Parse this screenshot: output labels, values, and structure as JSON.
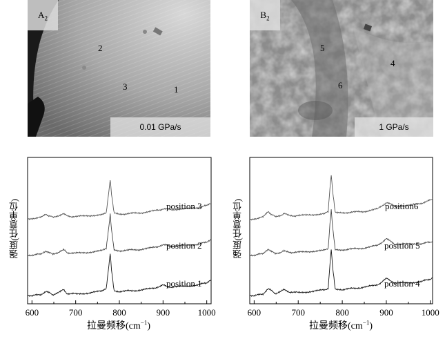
{
  "micrographs": [
    {
      "label_main": "A",
      "label_sub": "2",
      "rate": "0.01 GPa/s",
      "regions": [
        "2",
        "3",
        "1"
      ]
    },
    {
      "label_main": "B",
      "label_sub": "2",
      "rate": "1 GPa/s",
      "regions": [
        "5",
        "4",
        "6"
      ]
    }
  ],
  "chart_data": [
    {
      "type": "line",
      "xlabel": "拉曼频移(cm",
      "xlabel_sup": "−1",
      "xlabel_end": ")",
      "ylabel": "强度(任意单位)",
      "xlim": [
        590,
        1010
      ],
      "xticks": [
        600,
        700,
        800,
        900,
        1000
      ],
      "series": [
        {
          "name": "position 3",
          "offset": 2.0,
          "x": [
            590,
            600,
            620,
            632,
            640,
            648,
            660,
            672,
            680,
            700,
            730,
            760,
            770,
            776,
            779,
            782,
            788,
            800,
            850,
            880,
            900,
            920,
            950,
            980,
            1000,
            1010
          ],
          "y": [
            0.05,
            0.06,
            0.1,
            0.28,
            0.18,
            0.12,
            0.2,
            0.32,
            0.18,
            0.15,
            0.2,
            0.25,
            0.35,
            1.45,
            2.05,
            1.3,
            0.32,
            0.28,
            0.35,
            0.45,
            0.55,
            0.52,
            0.55,
            0.62,
            0.72,
            0.82
          ]
        },
        {
          "name": "position 2",
          "offset": 1.0,
          "x": [
            590,
            600,
            620,
            632,
            640,
            648,
            660,
            672,
            680,
            700,
            730,
            760,
            770,
            776,
            779,
            782,
            788,
            800,
            850,
            880,
            900,
            920,
            950,
            980,
            1000,
            1010
          ],
          "y": [
            0.05,
            0.06,
            0.1,
            0.28,
            0.16,
            0.12,
            0.2,
            0.34,
            0.18,
            0.15,
            0.2,
            0.28,
            0.38,
            1.5,
            2.15,
            1.35,
            0.32,
            0.28,
            0.35,
            0.45,
            0.58,
            0.52,
            0.55,
            0.62,
            0.72,
            0.84
          ]
        },
        {
          "name": "position 1",
          "offset": 0.0,
          "x": [
            590,
            600,
            620,
            632,
            640,
            648,
            660,
            672,
            680,
            700,
            730,
            760,
            770,
            776,
            779,
            782,
            788,
            800,
            850,
            880,
            900,
            920,
            950,
            980,
            1000,
            1010
          ],
          "y": [
            0.05,
            0.06,
            0.12,
            0.3,
            0.2,
            0.12,
            0.22,
            0.36,
            0.18,
            0.15,
            0.2,
            0.3,
            0.4,
            1.6,
            2.25,
            1.4,
            0.33,
            0.28,
            0.35,
            0.46,
            0.6,
            0.5,
            0.55,
            0.62,
            0.74,
            0.9
          ]
        }
      ]
    },
    {
      "type": "line",
      "xlabel": "拉曼频移(cm",
      "xlabel_sup": "−1",
      "xlabel_end": ")",
      "ylabel": "强度(任意单位)",
      "xlim": [
        590,
        1005
      ],
      "xticks": [
        600,
        700,
        800,
        900,
        1000
      ],
      "series": [
        {
          "name": "position6",
          "offset": 2.0,
          "x": [
            590,
            600,
            620,
            632,
            640,
            648,
            660,
            668,
            680,
            700,
            730,
            760,
            768,
            772,
            775,
            778,
            784,
            800,
            850,
            880,
            900,
            920,
            950,
            980,
            1000,
            1005
          ],
          "y": [
            0.02,
            0.04,
            0.12,
            0.42,
            0.25,
            0.15,
            0.22,
            0.3,
            0.2,
            0.2,
            0.25,
            0.3,
            0.42,
            1.6,
            2.3,
            1.5,
            0.38,
            0.35,
            0.42,
            0.55,
            0.88,
            0.7,
            0.72,
            0.85,
            1.0,
            1.08
          ]
        },
        {
          "name": "position 5",
          "offset": 1.0,
          "x": [
            590,
            600,
            620,
            632,
            640,
            648,
            660,
            668,
            680,
            700,
            730,
            760,
            768,
            772,
            775,
            778,
            784,
            800,
            850,
            880,
            900,
            920,
            950,
            980,
            1000,
            1005
          ],
          "y": [
            0.05,
            0.06,
            0.12,
            0.38,
            0.22,
            0.15,
            0.2,
            0.26,
            0.2,
            0.2,
            0.25,
            0.3,
            0.42,
            1.65,
            2.4,
            1.55,
            0.36,
            0.33,
            0.42,
            0.55,
            0.9,
            0.62,
            0.62,
            0.65,
            0.72,
            0.78
          ]
        },
        {
          "name": "position 4",
          "offset": 0.0,
          "x": [
            590,
            600,
            620,
            632,
            640,
            648,
            660,
            668,
            680,
            700,
            730,
            760,
            768,
            772,
            775,
            778,
            784,
            800,
            850,
            880,
            900,
            920,
            950,
            980,
            1000,
            1005
          ],
          "y": [
            0.05,
            0.06,
            0.15,
            0.45,
            0.3,
            0.18,
            0.28,
            0.38,
            0.26,
            0.22,
            0.28,
            0.36,
            0.45,
            1.7,
            2.5,
            1.6,
            0.42,
            0.38,
            0.5,
            0.62,
            0.95,
            0.72,
            0.72,
            0.8,
            0.92,
            1.0
          ]
        }
      ]
    }
  ]
}
